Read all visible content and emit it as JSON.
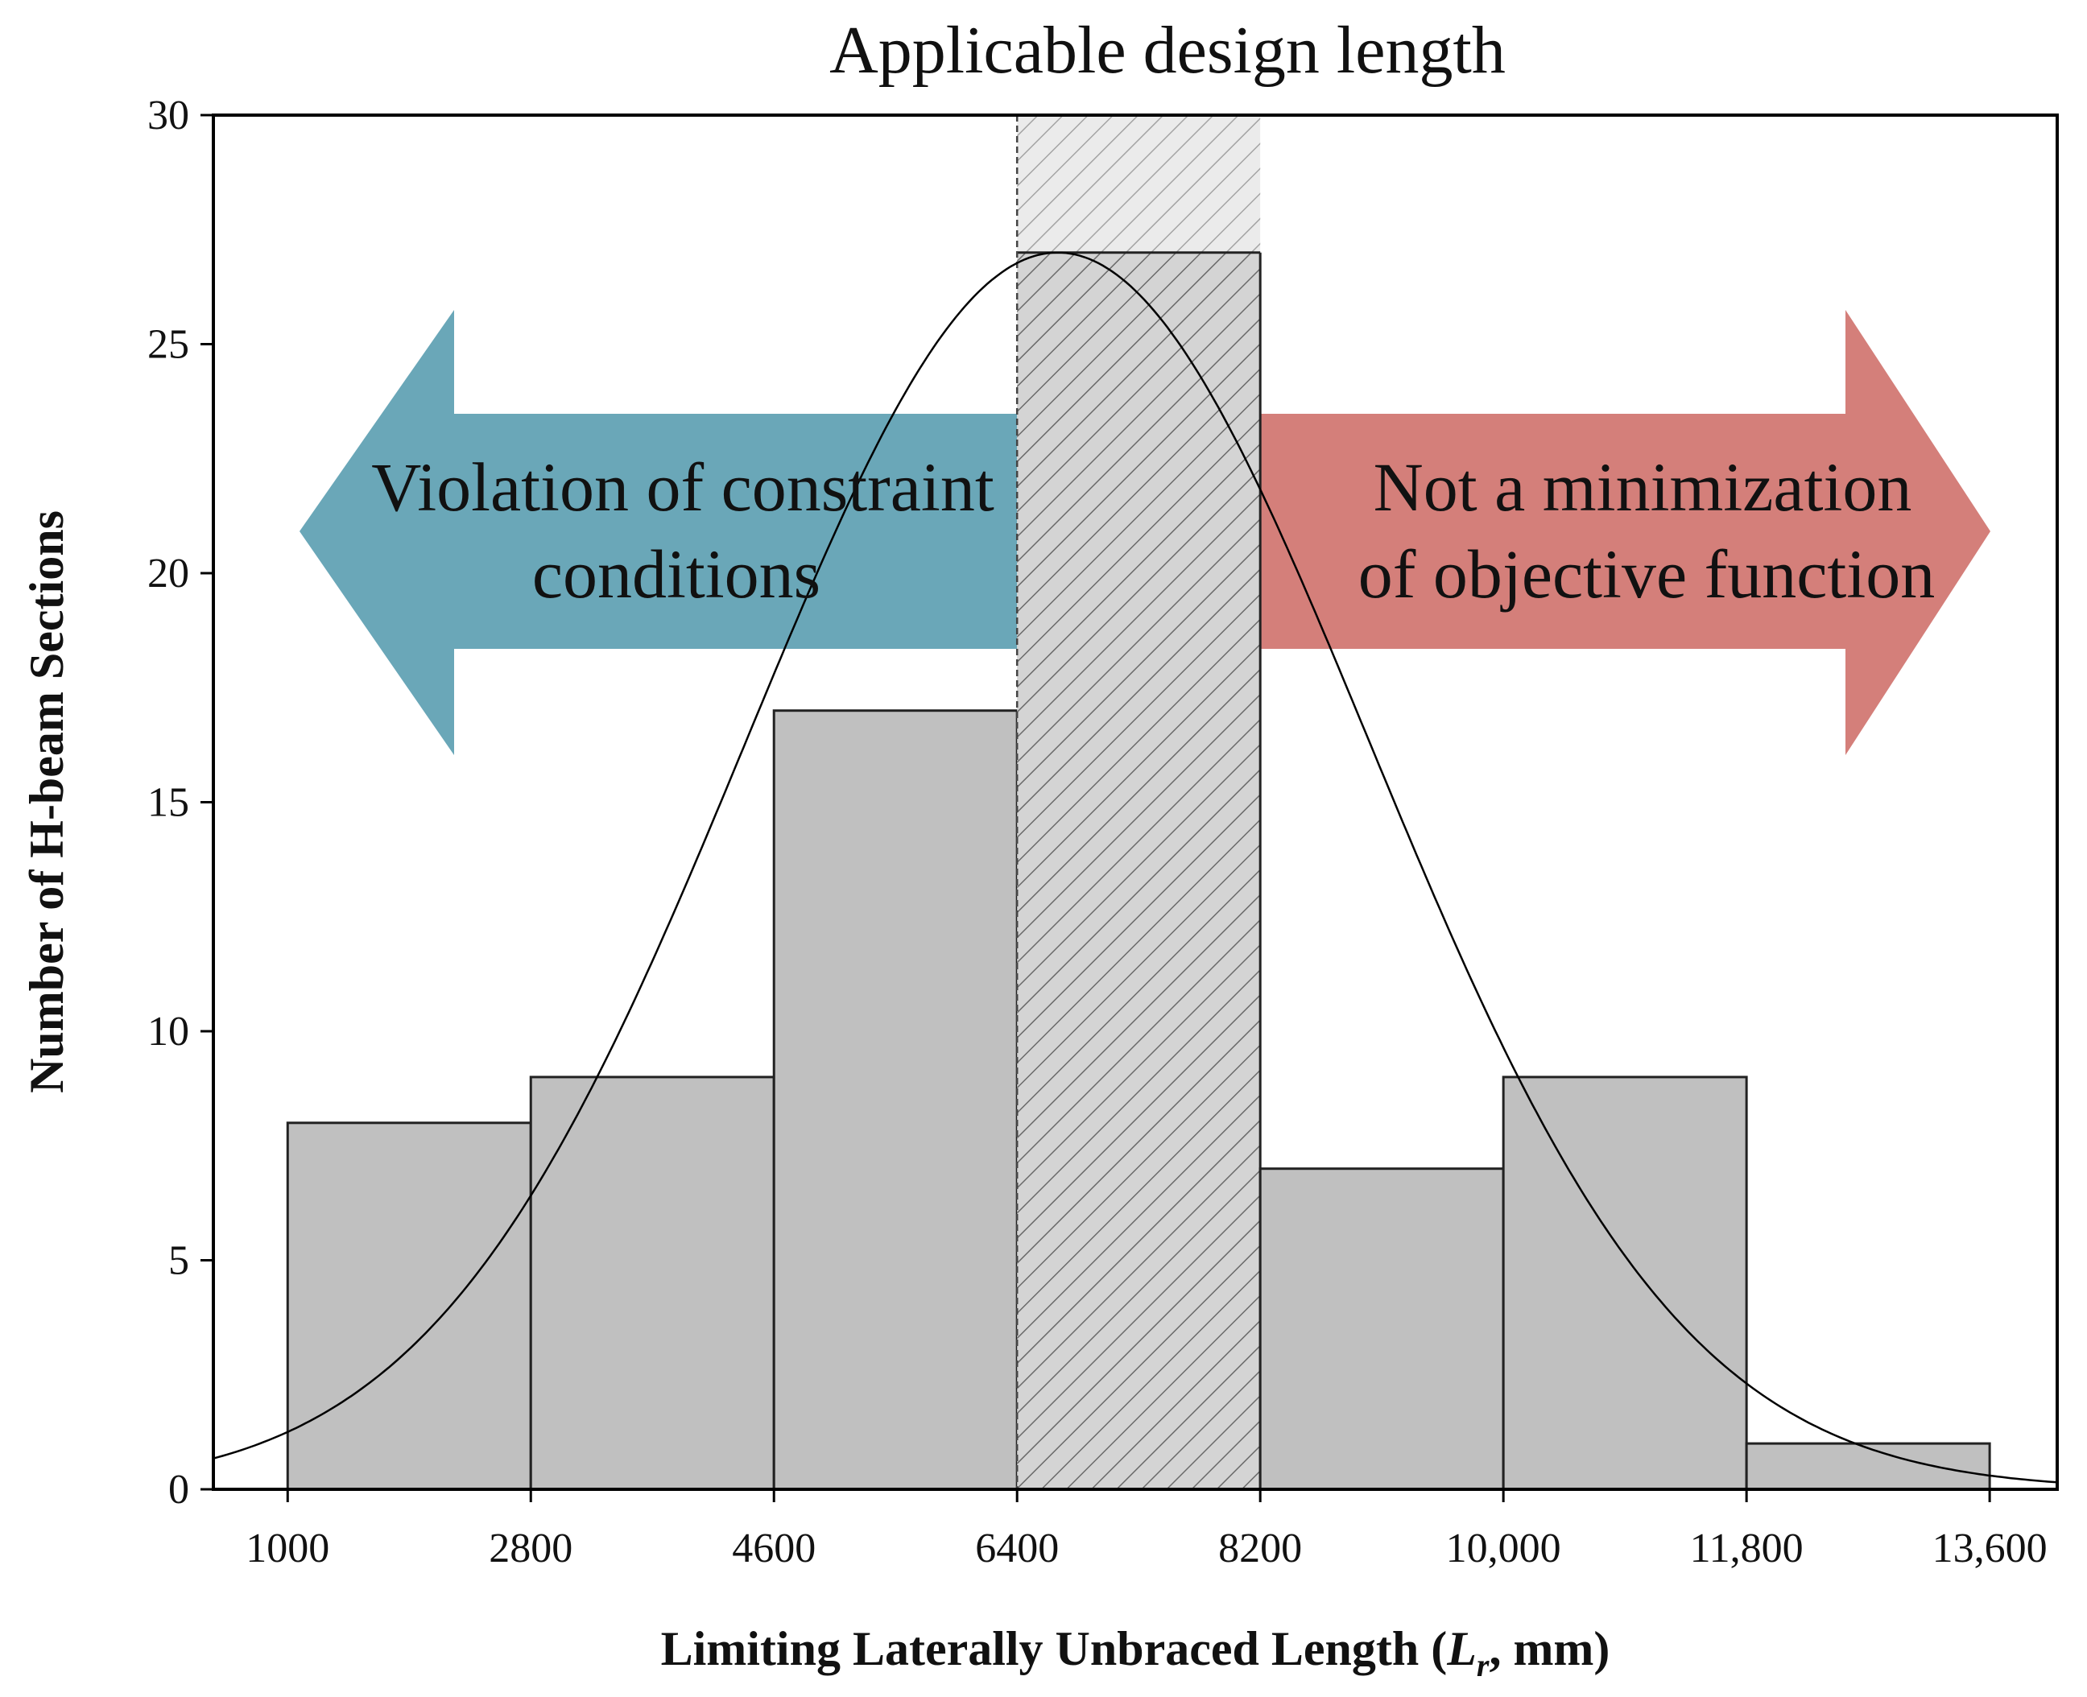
{
  "chart_data": {
    "type": "bar",
    "subtype": "histogram",
    "title": "Applicable design length",
    "xlabel": {
      "prefix": "Limiting Laterally Unbraced Length (",
      "symbol": "L",
      "subscript": "r",
      "suffix": ", mm)"
    },
    "ylabel": "Number of H-beam Sections",
    "xlim": [
      450,
      14100
    ],
    "ylim": [
      0,
      30
    ],
    "x_ticks": [
      1000,
      2800,
      4600,
      6400,
      8200,
      10000,
      11800,
      13600
    ],
    "x_tick_labels": [
      "1000",
      "2800",
      "4600",
      "6400",
      "8200",
      "10,000",
      "11,800",
      "13,600"
    ],
    "y_ticks": [
      0,
      5,
      10,
      15,
      20,
      25,
      30
    ],
    "y_tick_labels": [
      "0",
      "5",
      "10",
      "15",
      "20",
      "25",
      "30"
    ],
    "bins": [
      {
        "start": 1000,
        "end": 2800,
        "count": 8
      },
      {
        "start": 2800,
        "end": 4600,
        "count": 9
      },
      {
        "start": 4600,
        "end": 6400,
        "count": 17
      },
      {
        "start": 6400,
        "end": 8200,
        "count": 27
      },
      {
        "start": 8200,
        "end": 10000,
        "count": 7
      },
      {
        "start": 10000,
        "end": 11800,
        "count": 9
      },
      {
        "start": 11800,
        "end": 13600,
        "count": 1
      }
    ],
    "highlight_range": [
      6400,
      8200
    ],
    "fit_curve": {
      "type": "normal",
      "mean": 6700,
      "sd": 2300,
      "peak": 27
    },
    "annotations": {
      "left_arrow": [
        "Violation of constraint",
        "conditions"
      ],
      "right_arrow": [
        "Not a minimization",
        "of objective function"
      ]
    },
    "colors": {
      "bar": "#c0c0c0",
      "highlight_bar": "#d4d4d4",
      "left_arrow": "#6aa7b8",
      "right_arrow": "#d47f7a",
      "curve": "#000000"
    },
    "grid": false,
    "legend": "none"
  }
}
